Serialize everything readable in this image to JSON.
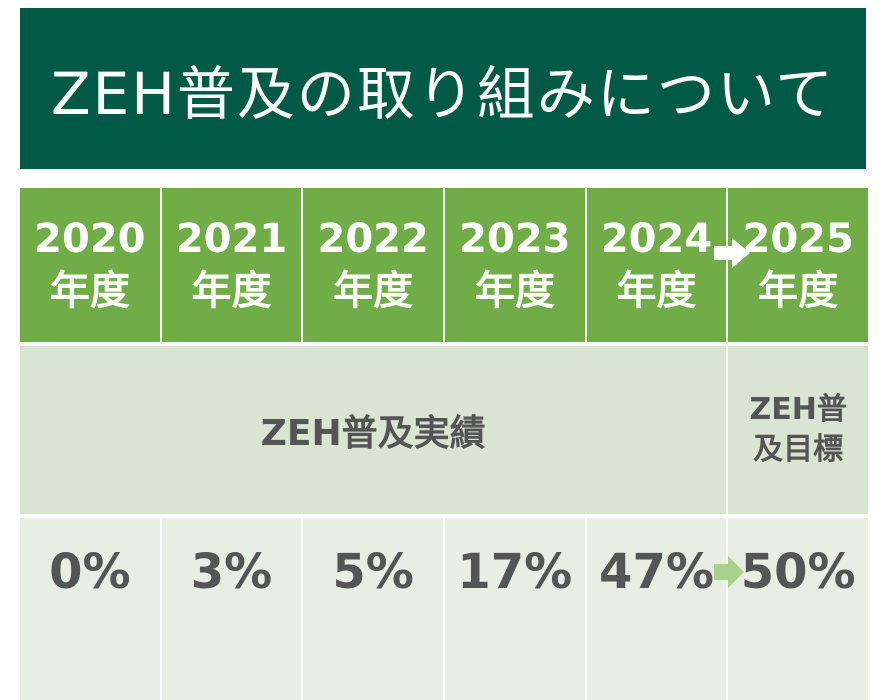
{
  "title": "ZEH普及の取り組みについて",
  "years": [
    {
      "year": "2020",
      "unit": "年度"
    },
    {
      "year": "2021",
      "unit": "年度"
    },
    {
      "year": "2022",
      "unit": "年度"
    },
    {
      "year": "2023",
      "unit": "年度"
    },
    {
      "year": "2024",
      "unit": "年度"
    },
    {
      "year": "2025",
      "unit": "年度"
    }
  ],
  "results_label": "ZEH普及実績",
  "target_label": {
    "line1": "ZEH普",
    "line2": "及目標"
  },
  "values": [
    "0%",
    "3%",
    "5%",
    "17%",
    "47%",
    "50%"
  ],
  "colors": {
    "title_bg": "#005a46",
    "year_bg": "#70ad47",
    "label_bg": "#d9e4d2",
    "value_bg": "#e8eee4",
    "arrow_green": "#a9d18e",
    "text_gray": "#555555"
  },
  "icons": {
    "white_arrow": "right-arrow-icon",
    "green_arrow": "right-arrow-icon"
  }
}
